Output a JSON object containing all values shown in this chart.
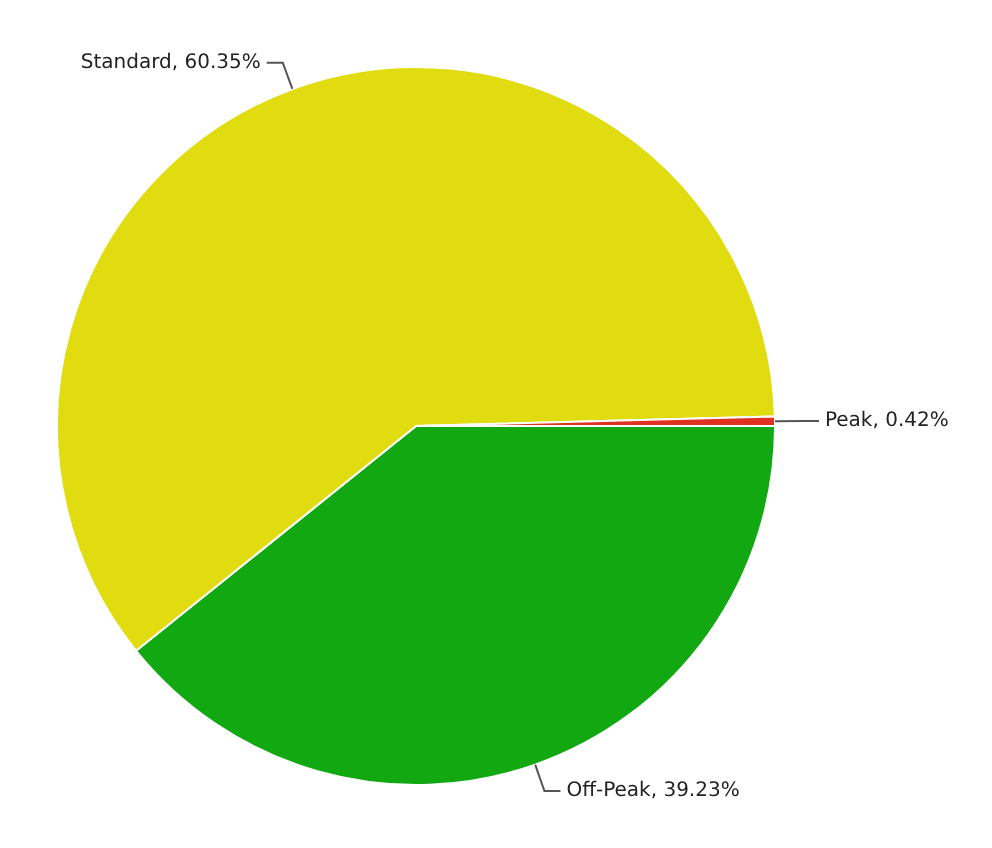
{
  "chart_data": {
    "type": "pie",
    "categories": [
      "Off-Peak",
      "Standard",
      "Peak"
    ],
    "values": [
      39.23,
      60.35,
      0.42
    ],
    "colors": [
      "#12a812",
      "#e0dc10",
      "#e03020"
    ],
    "value_labels": [
      "39.23%",
      "60.35%",
      "0.42%"
    ],
    "legend": false
  }
}
